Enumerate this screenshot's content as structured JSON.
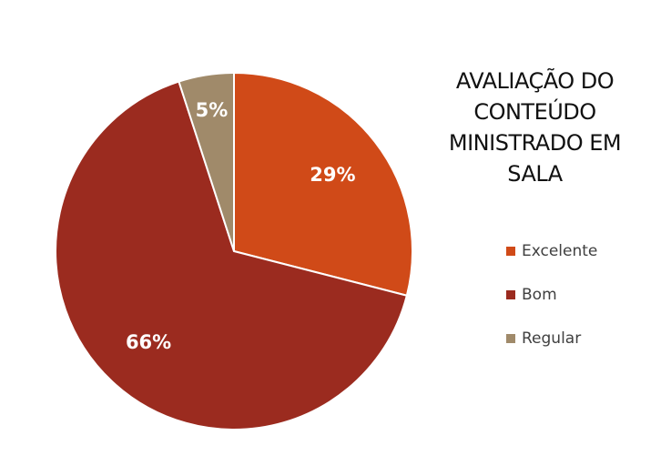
{
  "chart_data": {
    "type": "pie",
    "title_lines": [
      "AVALIAÇÃO DO",
      "CONTEÚDO",
      "MINISTRADO EM",
      "SALA"
    ],
    "slices": [
      {
        "name": "Excelente",
        "value": 29,
        "label": "29%",
        "color": "#d04a18"
      },
      {
        "name": "Bom",
        "value": 66,
        "label": "66%",
        "color": "#9b2b1f"
      },
      {
        "name": "Regular",
        "value": 5,
        "label": "5%",
        "color": "#a08a6a"
      }
    ],
    "start_angle_deg": 0,
    "direction": "clockwise",
    "legend_position": "right"
  }
}
